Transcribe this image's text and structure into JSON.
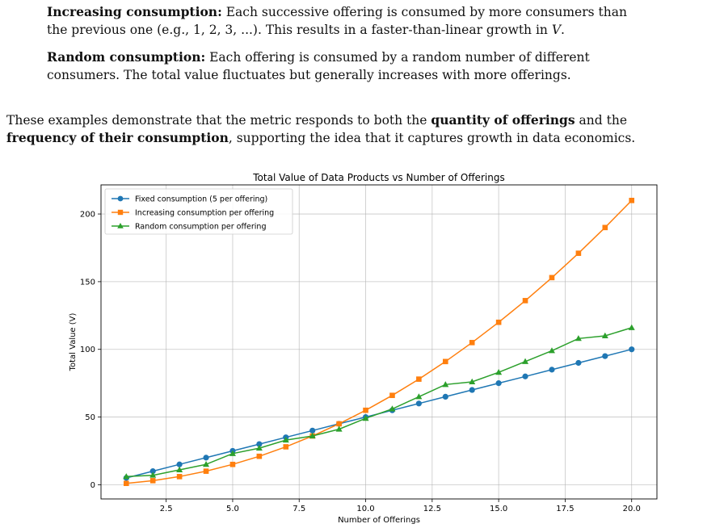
{
  "paragraphs": {
    "increasing": {
      "bold": "Increasing consumption:",
      "line1": " Each successive offering is consumed by more consumers than",
      "line2_pre": "the previous one (e.g., 1, 2, 3, ...). This results in a faster-than-linear growth in ",
      "var": "V",
      "line2_post": "."
    },
    "random": {
      "bold": "Random consumption:",
      "line1": " Each offering is consumed by a random number of different",
      "line2": "consumers. The total value fluctuates but generally increases with more offerings."
    },
    "summary": {
      "t1": "These examples demonstrate that the metric responds to both the ",
      "b1": "quantity of offerings",
      "t2": " and the",
      "b2": "frequency of their consumption",
      "t3": ", supporting the idea that it captures growth in data economics."
    }
  },
  "chart_data": {
    "type": "line",
    "title": "Total Value of Data Products vs Number of Offerings",
    "xlabel": "Number of Offerings",
    "ylabel": "Total Value (V)",
    "xlim": [
      0.05,
      20.95
    ],
    "ylim": [
      -10.5,
      221.5
    ],
    "xticks": [
      2.5,
      5.0,
      7.5,
      10.0,
      12.5,
      15.0,
      17.5,
      20.0
    ],
    "xtick_labels": [
      "2.5",
      "5.0",
      "7.5",
      "10.0",
      "12.5",
      "15.0",
      "17.5",
      "20.0"
    ],
    "yticks": [
      0,
      50,
      100,
      150,
      200
    ],
    "ytick_labels": [
      "0",
      "50",
      "100",
      "150",
      "200"
    ],
    "grid": true,
    "legend": "top-left",
    "x": [
      1,
      2,
      3,
      4,
      5,
      6,
      7,
      8,
      9,
      10,
      11,
      12,
      13,
      14,
      15,
      16,
      17,
      18,
      19,
      20
    ],
    "series": [
      {
        "name": "Fixed consumption (5 per offering)",
        "color": "#1f77b4",
        "marker": "circle",
        "values": [
          5,
          10,
          15,
          20,
          25,
          30,
          35,
          40,
          45,
          50,
          55,
          60,
          65,
          70,
          75,
          80,
          85,
          90,
          95,
          100
        ]
      },
      {
        "name": "Increasing consumption per offering",
        "color": "#ff7f0e",
        "marker": "square",
        "values": [
          1,
          3,
          6,
          10,
          15,
          21,
          28,
          36,
          45,
          55,
          66,
          78,
          91,
          105,
          120,
          136,
          153,
          171,
          190,
          210
        ]
      },
      {
        "name": "Random consumption per offering",
        "color": "#2ca02c",
        "marker": "triangle",
        "values": [
          6,
          7,
          11,
          15,
          23,
          27,
          33,
          36,
          41,
          49,
          56,
          65,
          74,
          76,
          83,
          91,
          99,
          108,
          110,
          116
        ]
      }
    ]
  }
}
